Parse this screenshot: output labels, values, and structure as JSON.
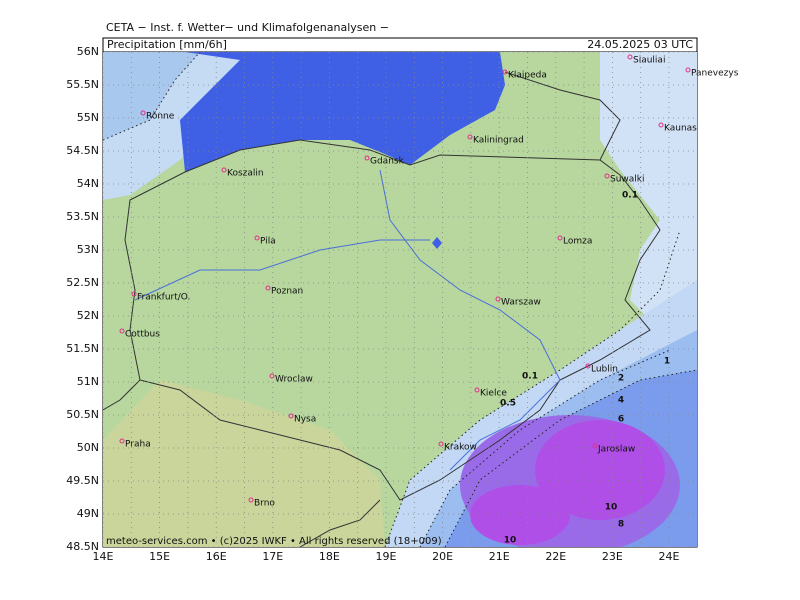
{
  "header": {
    "source": "CETA − Inst. f. Wetter− und Klimafolgenanalysen −",
    "title": "Precipitation [mm/6h]",
    "timestamp": "24.05.2025 03 UTC"
  },
  "axes": {
    "lat_labels": [
      "56N",
      "55.5N",
      "55N",
      "54.5N",
      "54N",
      "53.5N",
      "53N",
      "52.5N",
      "52N",
      "51.5N",
      "51N",
      "50.5N",
      "50N",
      "49.5N",
      "49N",
      "48.5N"
    ],
    "lon_labels": [
      "14E",
      "15E",
      "16E",
      "17E",
      "18E",
      "19E",
      "20E",
      "21E",
      "22E",
      "23E",
      "24E"
    ]
  },
  "cities": [
    "Rönne",
    "Koszalin",
    "Gdansk",
    "Klaipeda",
    "Kaliningrad",
    "Siauliai",
    "Panevezys",
    "Kaunas",
    "Suwalki",
    "Lomza",
    "Pila",
    "Poznan",
    "Frankfurt/O.",
    "Cottbus",
    "Warszaw",
    "Lublin",
    "Wroclaw",
    "Kielce",
    "Nysa",
    "Krakow",
    "Jaroslaw",
    "Praha",
    "Brno"
  ],
  "contour_labels": [
    "0.1",
    "0.1",
    "0.5",
    "1",
    "2",
    "4",
    "6",
    "10",
    "8",
    "10"
  ],
  "footer": "meteo-services.com • (c)2025 IWKF • All rights reserved (18+009)"
}
